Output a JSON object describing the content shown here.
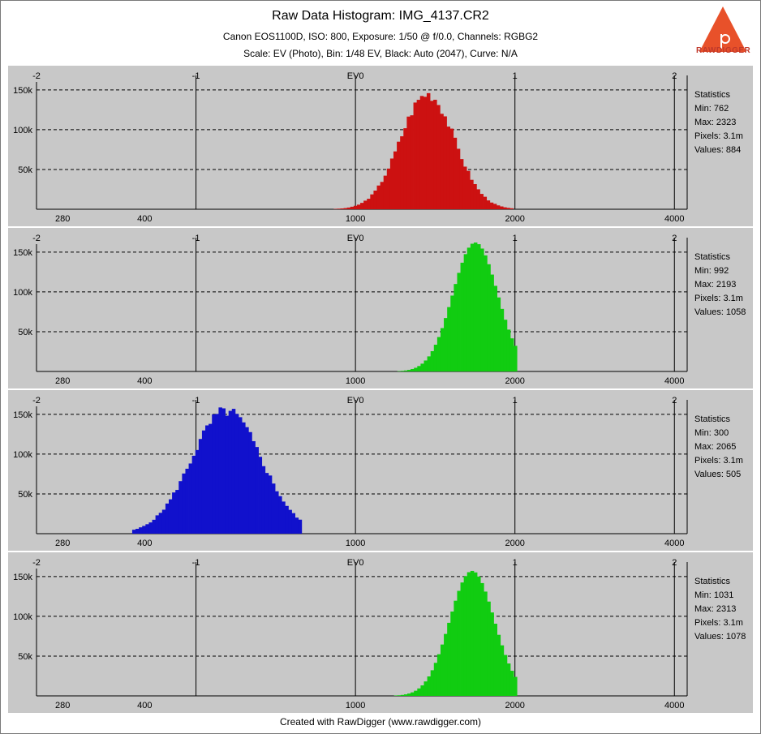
{
  "header": {
    "title": "Raw Data Histogram: IMG_4137.CR2",
    "subtitle": "Canon EOS1100D, ISO: 800, Exposure: 1/50 @ f/0.0, Channels: RGBG2",
    "scale_line": "Scale: EV (Photo), Bin: 1/48 EV, Black: Auto (2047), Curve: N/A"
  },
  "logo": {
    "text": "RAWDIGGER",
    "color": "#e8512a"
  },
  "footer": {
    "text": "Created with RawDigger (www.rawdigger.com)"
  },
  "colors": {
    "panel_bg": "#c8c8c8",
    "grid": "#000000",
    "red": "#cc1111",
    "green": "#11cc11",
    "blue": "#1111cc"
  },
  "chart_data": [
    {
      "type": "bar",
      "series_color": "#cc1111",
      "x_scale": "log2 (EV)",
      "xlim_ev": [
        -2,
        2.08
      ],
      "ylim": [
        0,
        160000
      ],
      "top_ticks": [
        "-2",
        "-1",
        "EV0",
        "1",
        "2"
      ],
      "top_tick_ev": [
        -2,
        -1,
        0,
        1,
        2
      ],
      "bottom_ticks": [
        "280",
        "400",
        "1000",
        "2000",
        "4000"
      ],
      "bottom_tick_values": [
        280,
        400,
        1000,
        2000,
        4000
      ],
      "y_ticks": [
        "150k",
        "100k",
        "50k"
      ],
      "y_tick_values": [
        150000,
        100000,
        50000
      ],
      "grid": "dashed horizontal, solid vertical at integer EV",
      "distribution": {
        "mean_ev": 0.44,
        "sigma_ev": 0.17,
        "peak": 148000,
        "from_ev": -0.22,
        "to_ev": 0.98,
        "jitter": true
      },
      "statistics": {
        "heading": "Statistics",
        "min": "Min: 762",
        "max": "Max: 2323",
        "pixels": "Pixels: 3.1m",
        "values": "Values: 884"
      }
    },
    {
      "type": "bar",
      "series_color": "#11cc11",
      "x_scale": "log2 (EV)",
      "xlim_ev": [
        -2,
        2.08
      ],
      "ylim": [
        0,
        160000
      ],
      "top_ticks": [
        "-2",
        "-1",
        "EV0",
        "1",
        "2"
      ],
      "top_tick_ev": [
        -2,
        -1,
        0,
        1,
        2
      ],
      "bottom_ticks": [
        "280",
        "400",
        "1000",
        "2000",
        "4000"
      ],
      "bottom_tick_values": [
        280,
        400,
        1000,
        2000,
        4000
      ],
      "y_ticks": [
        "150k",
        "100k",
        "50k"
      ],
      "y_tick_values": [
        150000,
        100000,
        50000
      ],
      "grid": "dashed horizontal, solid vertical at integer EV",
      "distribution": {
        "mean_ev": 0.74,
        "sigma_ev": 0.14,
        "peak": 162000,
        "from_ev": 0.2,
        "to_ev": 1.0,
        "jitter": false
      },
      "statistics": {
        "heading": "Statistics",
        "min": "Min: 992",
        "max": "Max: 2193",
        "pixels": "Pixels: 3.1m",
        "values": "Values: 1058"
      }
    },
    {
      "type": "bar",
      "series_color": "#1111cc",
      "x_scale": "log2 (EV)",
      "xlim_ev": [
        -2,
        2.08
      ],
      "ylim": [
        0,
        160000
      ],
      "top_ticks": [
        "-2",
        "-1",
        "EV0",
        "1",
        "2"
      ],
      "top_tick_ev": [
        -2,
        -1,
        0,
        1,
        2
      ],
      "bottom_ticks": [
        "280",
        "400",
        "1000",
        "2000",
        "4000"
      ],
      "bottom_tick_values": [
        280,
        400,
        1000,
        2000,
        4000
      ],
      "y_ticks": [
        "150k",
        "100k",
        "50k"
      ],
      "y_tick_values": [
        150000,
        100000,
        50000
      ],
      "grid": "dashed horizontal, solid vertical at integer EV",
      "distribution": {
        "mean_ev": -0.82,
        "sigma_ev": 0.22,
        "peak": 157000,
        "from_ev": -1.4,
        "to_ev": -0.35,
        "jitter": true
      },
      "statistics": {
        "heading": "Statistics",
        "min": "Min: 300",
        "max": "Max: 2065",
        "pixels": "Pixels: 3.1m",
        "values": "Values: 505"
      }
    },
    {
      "type": "bar",
      "series_color": "#11cc11",
      "x_scale": "log2 (EV)",
      "xlim_ev": [
        -2,
        2.08
      ],
      "ylim": [
        0,
        160000
      ],
      "top_ticks": [
        "-2",
        "-1",
        "EV0",
        "1",
        "2"
      ],
      "top_tick_ev": [
        -2,
        -1,
        0,
        1,
        2
      ],
      "bottom_ticks": [
        "280",
        "400",
        "1000",
        "2000",
        "4000"
      ],
      "bottom_tick_values": [
        280,
        400,
        1000,
        2000,
        4000
      ],
      "y_ticks": [
        "150k",
        "100k",
        "50k"
      ],
      "y_tick_values": [
        150000,
        100000,
        50000
      ],
      "grid": "dashed horizontal, solid vertical at integer EV",
      "distribution": {
        "mean_ev": 0.72,
        "sigma_ev": 0.14,
        "peak": 157000,
        "from_ev": 0.2,
        "to_ev": 1.0,
        "jitter": false
      },
      "statistics": {
        "heading": "Statistics",
        "min": "Min: 1031",
        "max": "Max: 2313",
        "pixels": "Pixels: 3.1m",
        "values": "Values: 1078"
      }
    }
  ]
}
